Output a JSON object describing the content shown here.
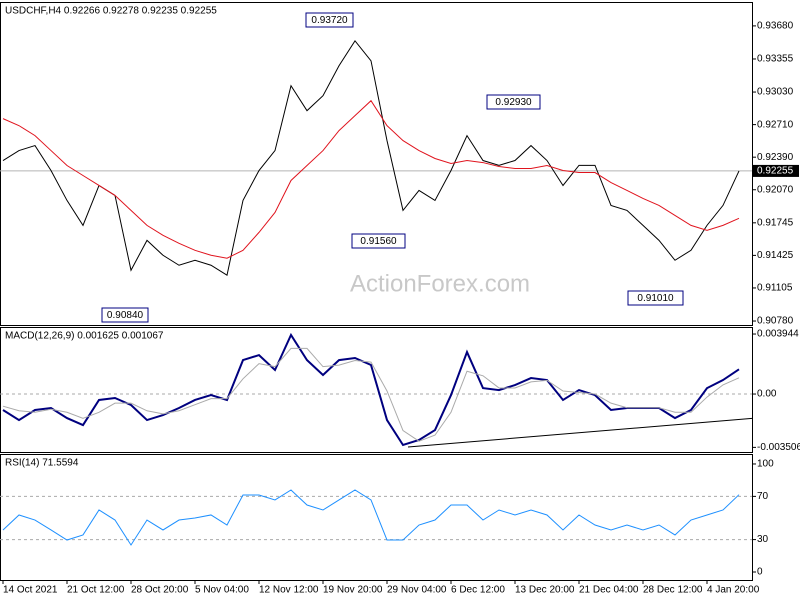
{
  "chart_data": [
    {
      "type": "line",
      "title": "USDCHF,H4 0.92266 0.92278 0.92235 0.92255",
      "ylim": [
        0.90741,
        0.93905
      ],
      "yticks": [
        {
          "value": 0.9368,
          "label": "0.93680"
        },
        {
          "value": 0.93355,
          "label": "0.93355"
        },
        {
          "value": 0.9303,
          "label": "0.93030"
        },
        {
          "value": 0.9271,
          "label": "0.92710"
        },
        {
          "value": 0.9239,
          "label": "0.92390"
        },
        {
          "value": 0.9207,
          "label": "0.92070"
        },
        {
          "value": 0.91745,
          "label": "0.91745"
        },
        {
          "value": 0.91425,
          "label": "0.91425"
        },
        {
          "value": 0.91105,
          "label": "0.91105"
        },
        {
          "value": 0.9078,
          "label": "0.90780"
        }
      ],
      "series": [
        {
          "color": "#000000",
          "values": [
            0.92357,
            0.92455,
            0.92504,
            0.92259,
            0.91965,
            0.9172,
            0.92112,
            0.92014,
            0.91279,
            0.91573,
            0.91426,
            0.91328,
            0.91377,
            0.91328,
            0.9123,
            0.91965,
            0.92259,
            0.92455,
            0.93092,
            0.92847,
            0.92994,
            0.93288,
            0.93533,
            0.93337,
            0.92553,
            0.91867,
            0.92063,
            0.91965,
            0.92259,
            0.92602,
            0.92357,
            0.9231,
            0.92357,
            0.92504,
            0.92357,
            0.92112,
            0.9231,
            0.9231,
            0.91916,
            0.91867,
            0.9172,
            0.91573,
            0.91377,
            0.91475,
            0.9172,
            0.91916,
            0.92255
          ]
        },
        {
          "color": "#e0141e",
          "values": [
            0.92769,
            0.927,
            0.92602,
            0.92455,
            0.92308,
            0.9221,
            0.92112,
            0.92014,
            0.91867,
            0.9172,
            0.91622,
            0.91544,
            0.91475,
            0.91426,
            0.91397,
            0.91475,
            0.91651,
            0.91847,
            0.92161,
            0.92308,
            0.92455,
            0.92651,
            0.92798,
            0.92945,
            0.927,
            0.92553,
            0.92455,
            0.92377,
            0.92328,
            0.92357,
            0.92337,
            0.92298,
            0.92279,
            0.92279,
            0.92308,
            0.92259,
            0.92239,
            0.92239,
            0.92141,
            0.92063,
            0.91985,
            0.91916,
            0.91818,
            0.9172,
            0.91671,
            0.9172,
            0.91789
          ]
        }
      ],
      "last_price": {
        "value": 0.92255,
        "label": "0.92255"
      },
      "annotations": [
        {
          "value": 0.9372,
          "label": "0.93720"
        },
        {
          "value": 0.9293,
          "label": "0.92930"
        },
        {
          "value": 0.9156,
          "label": "0.91560"
        },
        {
          "value": 0.9101,
          "label": "0.91010"
        },
        {
          "value": 0.9084,
          "label": "0.90840"
        }
      ],
      "watermark": "ActionForex.com"
    },
    {
      "type": "line",
      "title": "MACD(12,26,9) 0.001625 0.001067",
      "ylim": [
        -0.00381,
        0.00434
      ],
      "yticks": [
        0.003944,
        {
          "value": 0,
          "label": "0.00"
        },
        -0.003506
      ],
      "levels": [
        0
      ],
      "series": [
        {
          "color": "#00007f",
          "values": [
            -0.00105,
            -0.00171,
            -0.00105,
            -0.00092,
            -0.00158,
            -0.00204,
            -0.00039,
            -0.00026,
            -0.00072,
            -0.00171,
            -0.00138,
            -0.00092,
            -0.00039,
            -7e-05,
            -0.00039,
            0.00223,
            0.00256,
            0.00158,
            0.00388,
            0.00223,
            0.00125,
            0.00223,
            0.00237,
            0.00191,
            -0.00171,
            -0.00335,
            -0.00302,
            -0.00237,
            -7e-05,
            0.00276,
            0.00039,
            0.00026,
            0.00059,
            0.00105,
            0.00092,
            -0.00039,
            0.00026,
            -7e-05,
            -0.00105,
            -0.00092,
            -0.00092,
            -0.00092,
            -0.00158,
            -0.00105,
            0.00039,
            0.00092,
            0.001625
          ]
        },
        {
          "color": "#aaaaaa",
          "values": [
            -0.0008,
            -0.0011,
            -0.0012,
            -0.001,
            -0.0012,
            -0.0016,
            -0.0012,
            -0.0006,
            -0.0006,
            -0.0011,
            -0.0013,
            -0.0011,
            -0.0007,
            -0.0003,
            -0.0003,
            0.001,
            0.002,
            0.0018,
            0.003,
            0.003,
            0.0018,
            0.0019,
            0.0022,
            0.0021,
            0.0002,
            -0.0024,
            -0.0031,
            -0.0027,
            -0.0012,
            0.0015,
            0.0012,
            0.0004,
            0.0004,
            0.0008,
            0.0009,
            0.0002,
            0.0001,
            0,
            -0.0006,
            -0.0009,
            -0.0009,
            -0.0009,
            -0.0012,
            -0.0012,
            -0.0002,
            0.0006,
            0.001067
          ]
        }
      ],
      "trendline": [
        -0.00348,
        -0.0016
      ]
    },
    {
      "type": "line",
      "title": "RSI(14) 71.5594",
      "ylim": [
        -7.4,
        108.3
      ],
      "yticks": [
        100,
        70,
        30,
        0
      ],
      "levels": [
        70,
        30
      ],
      "series": [
        {
          "color": "#1e90ff",
          "values": [
            38.9,
            52.8,
            48.1,
            38.9,
            29.6,
            34.3,
            57.4,
            48.1,
            25,
            48.1,
            38.9,
            48.1,
            50,
            52.8,
            43.5,
            71.3,
            71.3,
            66.7,
            75.9,
            62,
            57.4,
            66.7,
            75.9,
            66.7,
            29.6,
            29.6,
            43.5,
            48.1,
            62,
            62,
            48.1,
            57.4,
            52.8,
            57.4,
            52.8,
            38.9,
            52.8,
            43.5,
            38.9,
            43.5,
            38.9,
            43.5,
            34.3,
            48.1,
            52.8,
            57.4,
            71.5594
          ]
        }
      ],
      "categories": [
        "14 Oct 2021",
        null,
        null,
        null,
        "21 Oct 12:00",
        null,
        null,
        null,
        "28 Oct 20:00",
        null,
        null,
        null,
        "5 Nov 04:00",
        null,
        null,
        null,
        "12 Nov 12:00",
        null,
        null,
        null,
        "19 Nov 20:00",
        null,
        null,
        null,
        "29 Nov 04:00",
        null,
        null,
        null,
        "6 Dec 12:00",
        null,
        null,
        null,
        "13 Dec 20:00",
        null,
        null,
        null,
        "21 Dec 04:00",
        null,
        null,
        null,
        "28 Dec 12:00",
        null,
        null,
        null,
        "4 Jan 20:00",
        null,
        null
      ]
    }
  ]
}
